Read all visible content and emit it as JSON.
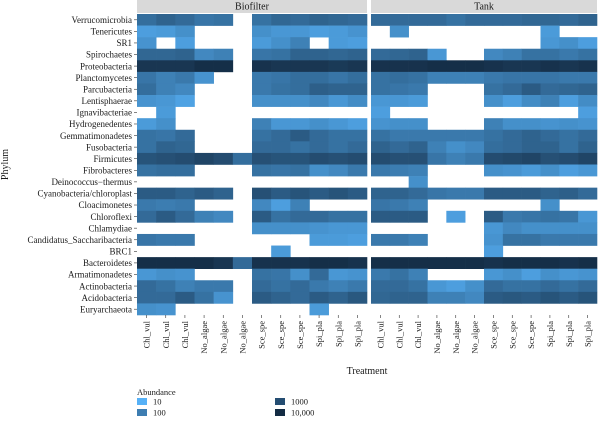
{
  "chart_data": {
    "type": "heatmap",
    "xlabel": "Treatment",
    "ylabel": "Phylum",
    "facets": [
      "Biofilter",
      "Tank"
    ],
    "x_categories": [
      "Chl_vul",
      "Chl_vul",
      "Chl_vul",
      "No_algae",
      "No_algae",
      "No_algae",
      "Sce_spe",
      "Sce_spe",
      "Sce_spe",
      "Spi_pla",
      "Spi_pla",
      "Spi_pla"
    ],
    "phyla": [
      "Verrucomicrobia",
      "Tenericutes",
      "SR1",
      "Spirochaetes",
      "Proteobacteria",
      "Planctomycetes",
      "Parcubacteria",
      "Lentisphaerae",
      "Ignavibacteriae",
      "Hydrogenedentes",
      "Gemmatimonadetes",
      "Fusobacteria",
      "Firmicutes",
      "Fibrobacteres",
      "Deinococcus−thermus",
      "Cyanobacteria/chloroplast",
      "Cloacimonetes",
      "Chloroflexi",
      "Chlamydiae",
      "Candidatus_Saccharibacteria",
      "BRC1",
      "Bacteroidetes",
      "Armatimonadetes",
      "Actinobacteria",
      "Acidobacteria",
      "Euryarchaeota"
    ],
    "legend": {
      "title": "Abundance",
      "entries": [
        {
          "label": "10",
          "color": "#56B1F7"
        },
        {
          "label": "100",
          "color": "#3D7DB1"
        },
        {
          "label": "1000",
          "color": "#244D72"
        },
        {
          "label": "10,000",
          "color": "#132B43"
        }
      ]
    },
    "color_scale": {
      "low": "#56B1F7",
      "high": "#132B43",
      "log10_min": 0.7,
      "log10_max": 4.3
    },
    "empty_color": "#ffffff",
    "panel_background": "#ffffff",
    "strip_color": "#d9d9d9",
    "values_log10": {
      "Biofilter": [
        [
          2.5,
          2.8,
          2.6,
          2.3,
          2.4,
          null,
          2.4,
          2.7,
          2.6,
          2.8,
          2.7,
          2.6
        ],
        [
          1.2,
          1.3,
          1.6,
          null,
          null,
          null,
          1.6,
          1.4,
          1.4,
          1.2,
          1.3,
          1.5
        ],
        [
          1.5,
          null,
          1.2,
          null,
          null,
          null,
          1.3,
          1.6,
          2.0,
          null,
          1.3,
          1.2
        ],
        [
          2.7,
          2.7,
          2.8,
          1.8,
          2.0,
          null,
          2.3,
          2.4,
          2.8,
          2.8,
          2.7,
          2.8
        ],
        [
          4.0,
          4.0,
          4.0,
          4.2,
          4.2,
          null,
          4.1,
          4.0,
          4.0,
          4.0,
          3.9,
          4.0
        ],
        [
          2.3,
          2.0,
          2.2,
          1.5,
          null,
          null,
          2.2,
          2.3,
          2.5,
          2.5,
          2.3,
          2.5
        ],
        [
          2.5,
          2.0,
          1.8,
          null,
          null,
          null,
          2.2,
          2.4,
          2.5,
          2.9,
          2.8,
          2.8
        ],
        [
          1.5,
          1.4,
          1.1,
          null,
          null,
          null,
          1.6,
          1.6,
          1.6,
          1.8,
          1.4,
          1.7
        ],
        [
          null,
          1.3,
          null,
          null,
          null,
          null,
          null,
          null,
          null,
          null,
          null,
          null
        ],
        [
          1.3,
          1.6,
          null,
          null,
          null,
          null,
          2.0,
          1.4,
          1.4,
          1.6,
          1.4,
          1.2
        ],
        [
          2.4,
          2.3,
          2.6,
          null,
          null,
          null,
          2.4,
          2.6,
          3.0,
          2.6,
          2.4,
          2.4
        ],
        [
          2.4,
          2.8,
          2.7,
          null,
          null,
          null,
          2.6,
          2.6,
          2.4,
          2.6,
          2.4,
          2.6
        ],
        [
          3.2,
          3.3,
          3.4,
          3.6,
          3.4,
          2.5,
          3.3,
          3.2,
          3.2,
          3.4,
          3.3,
          3.4
        ],
        [
          2.4,
          2.5,
          2.5,
          null,
          null,
          null,
          2.4,
          2.3,
          2.4,
          1.6,
          1.8,
          2.2
        ],
        [
          null,
          null,
          null,
          null,
          null,
          null,
          null,
          null,
          null,
          null,
          null,
          null
        ],
        [
          3.0,
          3.0,
          2.8,
          3.0,
          2.8,
          null,
          3.3,
          3.0,
          3.2,
          3.0,
          3.2,
          3.0
        ],
        [
          2.2,
          2.1,
          2.2,
          null,
          null,
          null,
          1.8,
          1.2,
          2.0,
          null,
          null,
          null
        ],
        [
          2.6,
          3.0,
          2.6,
          2.0,
          1.8,
          null,
          3.0,
          2.4,
          2.6,
          2.6,
          2.4,
          2.4
        ],
        [
          null,
          null,
          null,
          null,
          null,
          null,
          1.6,
          1.6,
          1.6,
          1.5,
          1.4,
          1.4
        ],
        [
          2.3,
          2.2,
          2.2,
          null,
          null,
          null,
          null,
          null,
          null,
          1.3,
          1.3,
          1.2
        ],
        [
          null,
          null,
          null,
          null,
          null,
          null,
          null,
          1.3,
          null,
          null,
          null,
          null
        ],
        [
          4.2,
          4.2,
          4.2,
          4.2,
          4.0,
          2.6,
          4.1,
          4.1,
          4.1,
          4.2,
          4.2,
          4.1
        ],
        [
          1.4,
          1.6,
          1.5,
          null,
          null,
          null,
          2.4,
          2.3,
          1.6,
          2.6,
          1.4,
          1.5
        ],
        [
          2.6,
          2.4,
          2.0,
          2.2,
          2.2,
          null,
          2.6,
          2.4,
          2.6,
          2.2,
          2.0,
          2.2
        ],
        [
          2.6,
          2.6,
          3.0,
          2.4,
          1.5,
          null,
          3.0,
          2.8,
          2.6,
          3.0,
          2.8,
          3.1
        ],
        [
          1.6,
          1.5,
          null,
          null,
          null,
          null,
          null,
          null,
          null,
          1.3,
          null,
          null
        ]
      ],
      "Tank": [
        [
          2.6,
          2.6,
          2.6,
          2.6,
          2.4,
          2.6,
          2.6,
          2.6,
          2.7,
          2.7,
          2.6,
          2.8
        ],
        [
          null,
          1.6,
          null,
          null,
          null,
          null,
          null,
          null,
          null,
          1.3,
          null,
          null
        ],
        [
          null,
          null,
          null,
          null,
          null,
          null,
          null,
          null,
          null,
          1.4,
          1.6,
          1.2
        ],
        [
          2.6,
          2.7,
          2.8,
          1.4,
          null,
          null,
          1.8,
          2.0,
          2.4,
          2.4,
          2.2,
          2.4
        ],
        [
          4.1,
          4.1,
          4.1,
          4.2,
          4.2,
          4.2,
          4.1,
          4.0,
          4.0,
          4.1,
          4.0,
          4.1
        ],
        [
          2.4,
          2.5,
          2.4,
          2.0,
          2.0,
          2.0,
          2.2,
          2.3,
          2.3,
          2.3,
          2.2,
          2.2
        ],
        [
          2.4,
          2.3,
          2.2,
          null,
          null,
          null,
          2.4,
          2.6,
          3.0,
          2.6,
          2.7,
          2.8
        ],
        [
          1.4,
          1.4,
          1.3,
          null,
          null,
          null,
          1.6,
          1.2,
          1.7,
          2.0,
          1.2,
          1.7
        ],
        [
          1.2,
          null,
          null,
          null,
          null,
          null,
          null,
          null,
          null,
          null,
          null,
          1.2
        ],
        [
          1.5,
          1.6,
          1.6,
          null,
          null,
          null,
          2.0,
          1.6,
          1.6,
          1.5,
          1.6,
          1.5
        ],
        [
          2.4,
          2.2,
          2.2,
          2.2,
          2.2,
          2.2,
          2.4,
          2.6,
          2.8,
          2.6,
          2.4,
          2.6
        ],
        [
          2.8,
          2.6,
          2.8,
          2.0,
          1.6,
          1.8,
          2.5,
          2.6,
          2.8,
          2.8,
          2.4,
          2.8
        ],
        [
          3.4,
          3.3,
          3.3,
          2.3,
          2.0,
          2.2,
          3.4,
          3.5,
          3.6,
          3.3,
          3.4,
          3.6
        ],
        [
          2.2,
          2.1,
          2.0,
          null,
          null,
          null,
          1.6,
          1.5,
          1.3,
          1.6,
          1.2,
          1.4
        ],
        [
          null,
          null,
          1.6,
          null,
          null,
          null,
          null,
          null,
          null,
          null,
          null,
          null
        ],
        [
          2.8,
          2.8,
          2.6,
          2.3,
          2.2,
          2.2,
          3.0,
          3.0,
          3.0,
          2.8,
          2.9,
          2.6
        ],
        [
          2.3,
          2.2,
          2.0,
          null,
          null,
          null,
          null,
          null,
          null,
          1.6,
          null,
          null
        ],
        [
          3.0,
          3.0,
          3.0,
          null,
          1.2,
          null,
          3.0,
          2.2,
          2.3,
          2.4,
          2.3,
          1.4
        ],
        [
          null,
          null,
          null,
          null,
          null,
          null,
          1.4,
          1.8,
          1.6,
          1.6,
          1.6,
          1.6
        ],
        [
          2.2,
          2.2,
          2.0,
          null,
          null,
          null,
          1.5,
          2.4,
          2.4,
          2.2,
          2.2,
          2.2
        ],
        [
          null,
          null,
          null,
          null,
          null,
          null,
          1.2,
          null,
          null,
          null,
          null,
          null
        ],
        [
          4.2,
          4.2,
          4.2,
          4.2,
          4.2,
          4.2,
          4.1,
          4.2,
          4.2,
          4.2,
          4.1,
          4.2
        ],
        [
          2.2,
          2.4,
          2.0,
          null,
          null,
          null,
          1.4,
          1.6,
          1.2,
          1.6,
          1.4,
          1.5
        ],
        [
          2.6,
          2.6,
          2.4,
          1.4,
          1.2,
          1.6,
          2.6,
          2.4,
          2.4,
          2.6,
          2.4,
          2.6
        ],
        [
          2.7,
          2.8,
          2.8,
          2.0,
          2.0,
          1.8,
          3.0,
          3.1,
          3.0,
          3.2,
          3.0,
          3.2
        ],
        [
          null,
          null,
          null,
          null,
          null,
          null,
          null,
          null,
          null,
          null,
          null,
          null
        ]
      ]
    }
  }
}
